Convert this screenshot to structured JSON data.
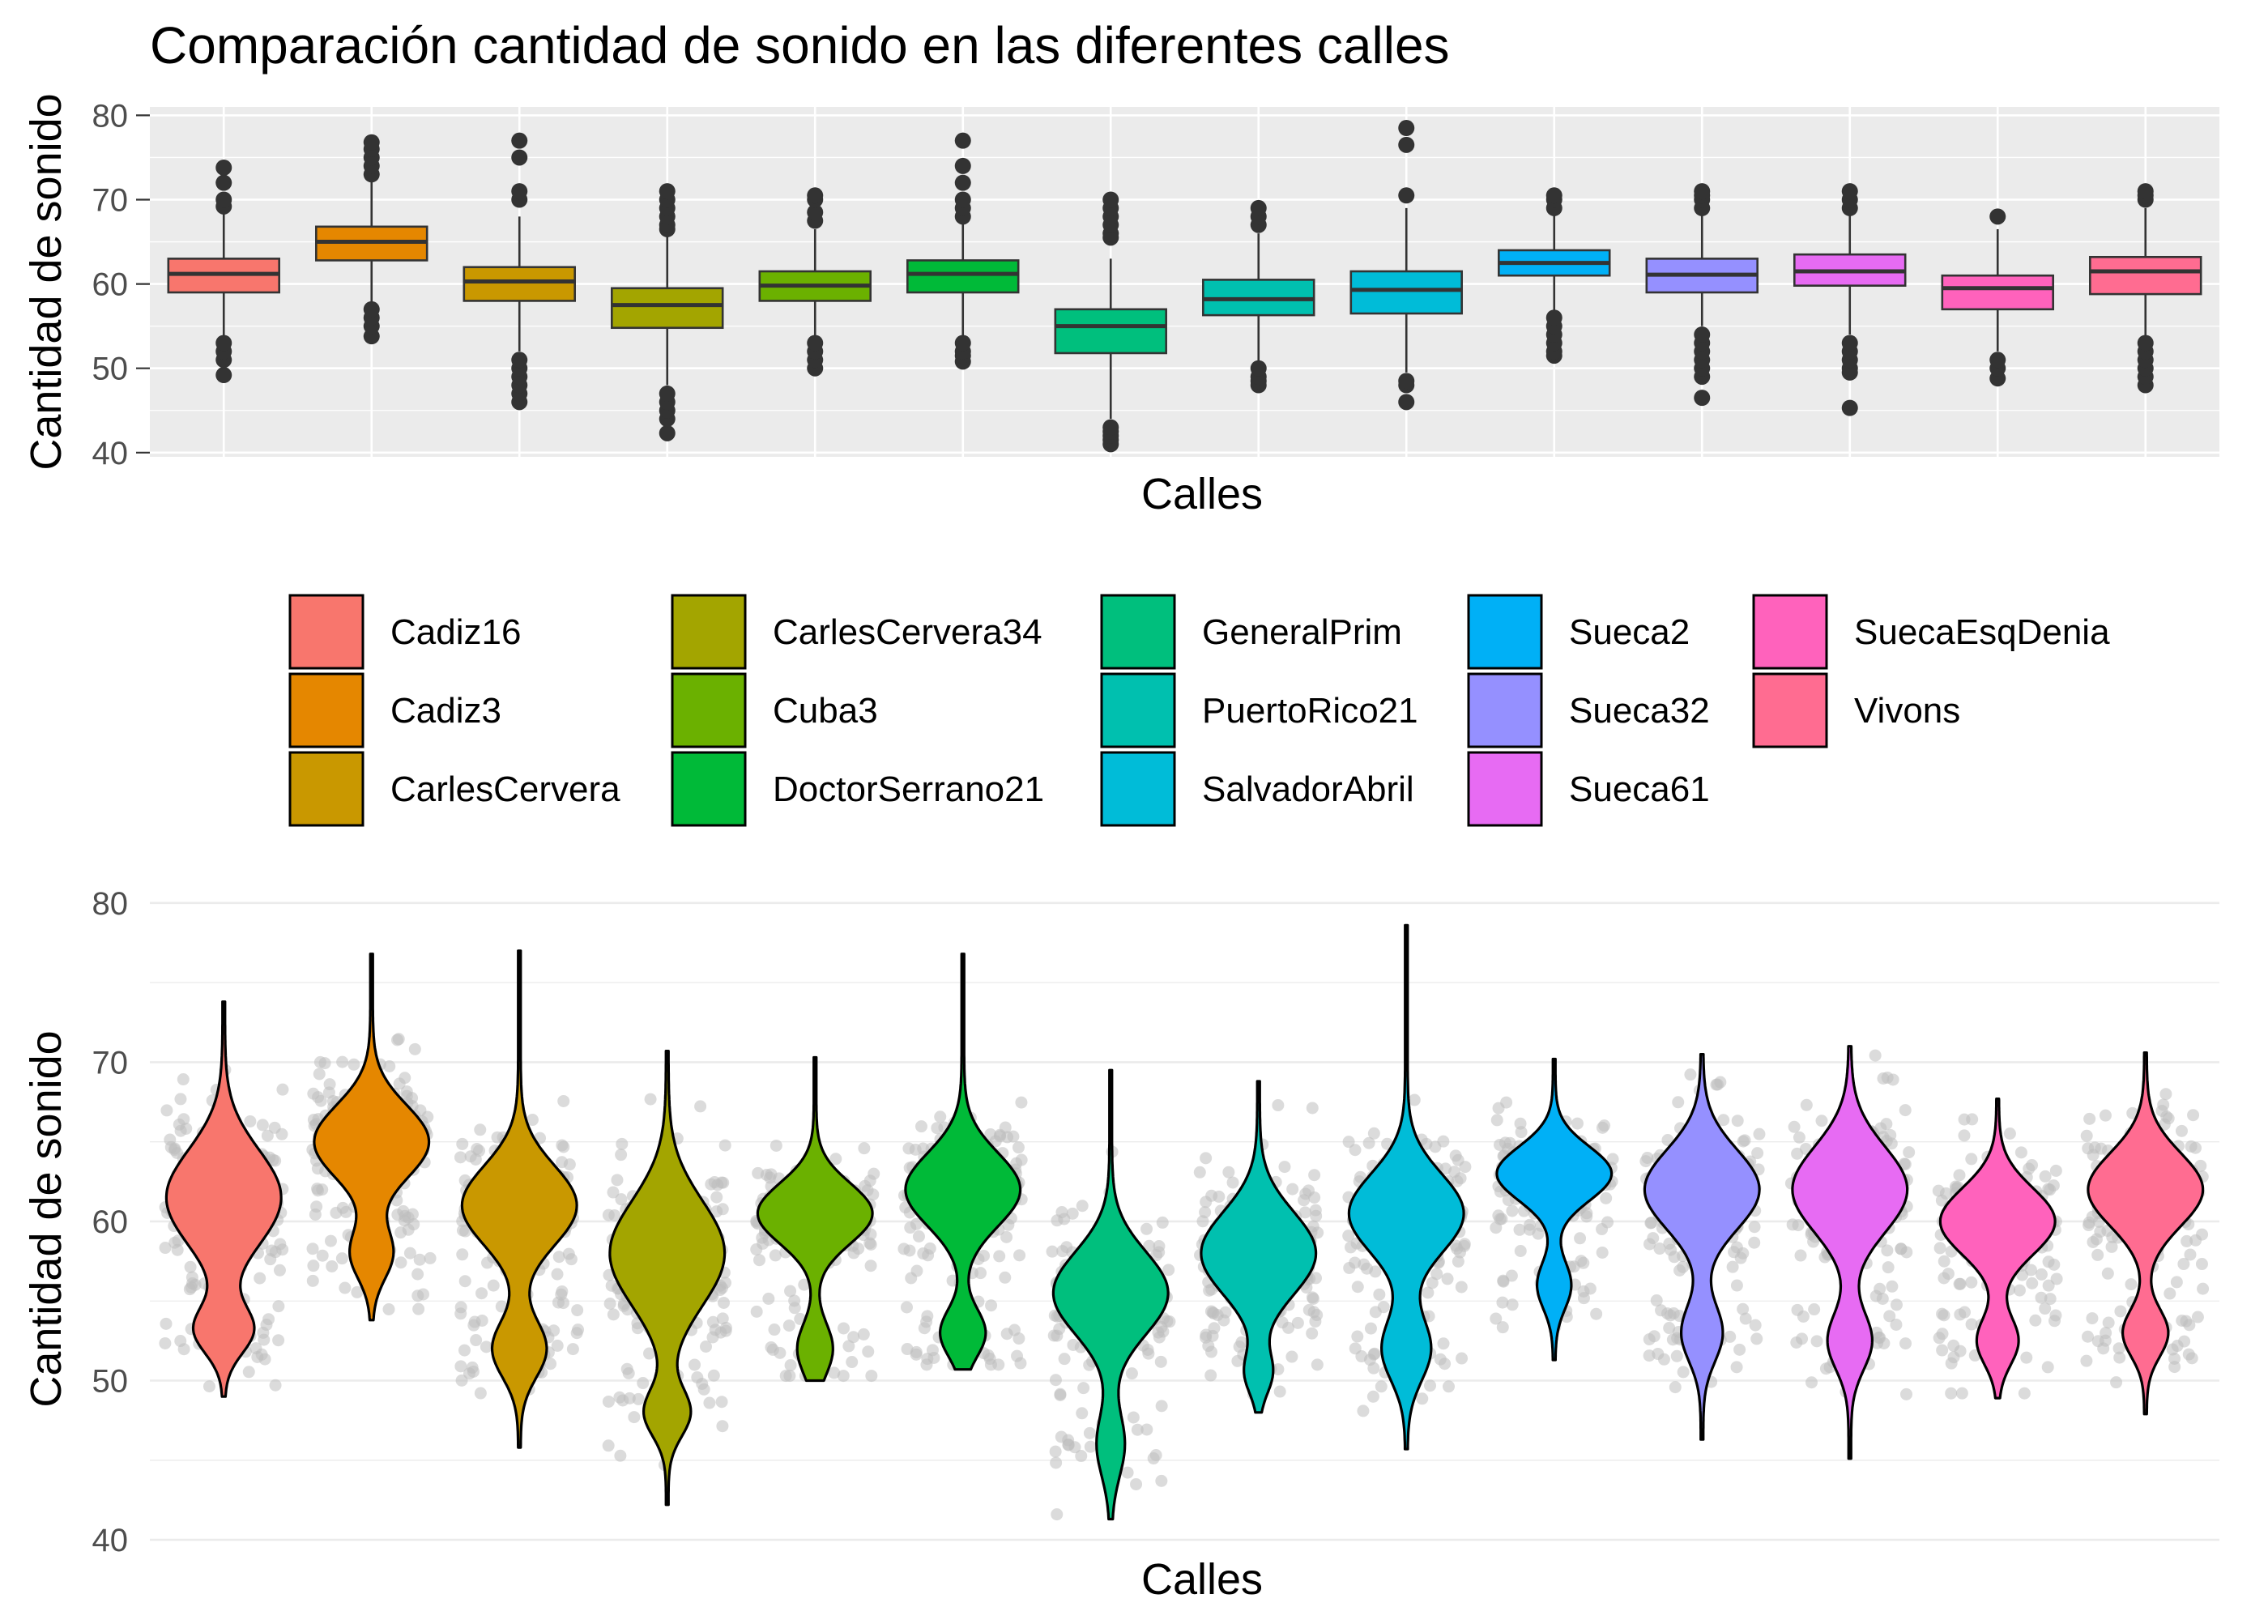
{
  "title": "Comparación cantidad de sonido en las diferentes calles",
  "chart_data": [
    {
      "type": "box",
      "xlabel": "Calles",
      "ylabel": "Cantidad de sonido",
      "ylim": [
        39.5,
        81
      ],
      "yticks": [
        40,
        50,
        60,
        70,
        80
      ],
      "grid": true,
      "categories": [
        "Cadiz16",
        "Cadiz3",
        "CarlesCervera",
        "CarlesCervera34",
        "Cuba3",
        "DoctorSerrano21",
        "GeneralPrim",
        "PuertoRico21",
        "SalvadorAbril",
        "Sueca2",
        "Sueca32",
        "Sueca61",
        "SuecaEsqDenia",
        "Vivons"
      ],
      "boxes": [
        {
          "name": "Cadiz16",
          "color": "#F8766D",
          "q1": 59,
          "median": 61.2,
          "q3": 63,
          "whisker_low": 53,
          "whisker_high": 68.5,
          "outliers": [
            49.2,
            51,
            52,
            53,
            69.2,
            70,
            72,
            73.8
          ]
        },
        {
          "name": "Cadiz3",
          "color": "#E58700",
          "q1": 62.8,
          "median": 65,
          "q3": 66.8,
          "whisker_low": 57,
          "whisker_high": 72.5,
          "outliers": [
            53.8,
            55,
            56,
            57,
            73,
            74,
            75,
            76,
            76.8
          ]
        },
        {
          "name": "CarlesCervera",
          "color": "#C99800",
          "q1": 58,
          "median": 60.3,
          "q3": 62,
          "whisker_low": 52,
          "whisker_high": 68,
          "outliers": [
            46,
            47,
            48,
            49,
            50,
            51,
            70,
            71,
            75,
            77
          ]
        },
        {
          "name": "CarlesCervera34",
          "color": "#A3A500",
          "q1": 54.8,
          "median": 57.5,
          "q3": 59.5,
          "whisker_low": 48,
          "whisker_high": 66,
          "outliers": [
            42.3,
            44,
            45,
            46,
            47,
            66.5,
            67,
            68,
            69,
            70,
            71
          ]
        },
        {
          "name": "Cuba3",
          "color": "#6BB100",
          "q1": 58,
          "median": 59.8,
          "q3": 61.5,
          "whisker_low": 53,
          "whisker_high": 66.5,
          "outliers": [
            50,
            51,
            52,
            53,
            67.5,
            68.5,
            70,
            70.5
          ]
        },
        {
          "name": "DoctorSerrano21",
          "color": "#00BA38",
          "q1": 59,
          "median": 61.2,
          "q3": 62.8,
          "whisker_low": 53,
          "whisker_high": 67.5,
          "outliers": [
            50.8,
            51.5,
            52,
            53,
            68,
            69,
            70,
            72,
            74,
            77
          ]
        },
        {
          "name": "GeneralPrim",
          "color": "#00BF7D",
          "q1": 51.8,
          "median": 55,
          "q3": 57,
          "whisker_low": 44,
          "whisker_high": 63,
          "outliers": [
            41,
            41.5,
            42,
            42.5,
            43,
            65.5,
            66,
            67,
            68,
            69,
            70
          ]
        },
        {
          "name": "PuertoRico21",
          "color": "#00C0AF",
          "q1": 56.3,
          "median": 58.2,
          "q3": 60.5,
          "whisker_low": 50,
          "whisker_high": 66,
          "outliers": [
            48,
            48.5,
            49,
            50,
            67,
            68,
            69
          ]
        },
        {
          "name": "SalvadorAbril",
          "color": "#00BCD8",
          "q1": 56.5,
          "median": 59.3,
          "q3": 61.5,
          "whisker_low": 49.5,
          "whisker_high": 69,
          "outliers": [
            46,
            48,
            48.5,
            70.5,
            76.5,
            78.5
          ]
        },
        {
          "name": "Sueca2",
          "color": "#00B0F6",
          "q1": 61,
          "median": 62.5,
          "q3": 64,
          "whisker_low": 56.5,
          "whisker_high": 68.5,
          "outliers": [
            51.5,
            52,
            53,
            54,
            55,
            56,
            69,
            70,
            70.5
          ]
        },
        {
          "name": "Sueca32",
          "color": "#9590FF",
          "q1": 59,
          "median": 61.1,
          "q3": 63,
          "whisker_low": 55,
          "whisker_high": 68.5,
          "outliers": [
            46.5,
            49,
            50,
            51,
            52,
            53,
            54,
            69,
            70,
            70.5,
            71
          ]
        },
        {
          "name": "Sueca61",
          "color": "#E76BF3",
          "q1": 59.8,
          "median": 61.5,
          "q3": 63.5,
          "whisker_low": 54,
          "whisker_high": 68.5,
          "outliers": [
            45.3,
            49.5,
            50,
            51,
            52,
            53,
            69,
            70,
            71
          ]
        },
        {
          "name": "SuecaEsqDenia",
          "color": "#FF62BC",
          "q1": 57,
          "median": 59.5,
          "q3": 61,
          "whisker_low": 52,
          "whisker_high": 66.5,
          "outliers": [
            48.8,
            50,
            51,
            68
          ]
        },
        {
          "name": "Vivons",
          "color": "#FF6C91",
          "q1": 58.8,
          "median": 61.5,
          "q3": 63.2,
          "whisker_low": 53,
          "whisker_high": 69,
          "outliers": [
            48,
            49,
            50,
            51,
            52,
            53,
            70,
            70.5,
            71
          ]
        }
      ]
    },
    {
      "type": "violin",
      "xlabel": "Calles",
      "ylabel": "Cantidad de sonido",
      "ylim": [
        39.8,
        80.5
      ],
      "yticks": [
        40,
        50,
        60,
        70,
        80
      ],
      "grid": true,
      "jitter_points_color": "#BEBEBE",
      "violins": [
        {
          "name": "Cadiz16",
          "color": "#F8766D",
          "min": 49,
          "max": 73.8,
          "modes": [
            {
              "mu": 61.5,
              "sd": 3,
              "w": 0.8
            },
            {
              "mu": 53.2,
              "sd": 1.5,
              "w": 0.2
            }
          ]
        },
        {
          "name": "Cadiz3",
          "color": "#E58700",
          "min": 53.8,
          "max": 76.8,
          "modes": [
            {
              "mu": 65,
              "sd": 2.3,
              "w": 0.8
            },
            {
              "mu": 58,
              "sd": 1.6,
              "w": 0.2
            }
          ]
        },
        {
          "name": "CarlesCervera",
          "color": "#C99800",
          "min": 45.8,
          "max": 77,
          "modes": [
            {
              "mu": 61,
              "sd": 2.5,
              "w": 0.75
            },
            {
              "mu": 52,
              "sd": 1.8,
              "w": 0.25
            }
          ]
        },
        {
          "name": "CarlesCervera34",
          "color": "#A3A500",
          "min": 42.2,
          "max": 70.7,
          "modes": [
            {
              "mu": 58,
              "sd": 3.3,
              "w": 0.85
            },
            {
              "mu": 48,
              "sd": 1.5,
              "w": 0.15
            }
          ]
        },
        {
          "name": "Cuba3",
          "color": "#6BB100",
          "min": 50,
          "max": 70.3,
          "modes": [
            {
              "mu": 60.5,
              "sd": 1.9,
              "w": 0.8
            },
            {
              "mu": 52,
              "sd": 1.6,
              "w": 0.2
            }
          ]
        },
        {
          "name": "DoctorSerrano21",
          "color": "#00BA38",
          "min": 50.7,
          "max": 76.8,
          "modes": [
            {
              "mu": 62,
              "sd": 2.3,
              "w": 0.8
            },
            {
              "mu": 53,
              "sd": 1.5,
              "w": 0.2
            }
          ]
        },
        {
          "name": "GeneralPrim",
          "color": "#00BF7D",
          "min": 41.3,
          "max": 69.5,
          "modes": [
            {
              "mu": 55.5,
              "sd": 2.6,
              "w": 0.85
            },
            {
              "mu": 46,
              "sd": 2,
              "w": 0.15
            }
          ]
        },
        {
          "name": "PuertoRico21",
          "color": "#00C0AF",
          "min": 48,
          "max": 68.8,
          "modes": [
            {
              "mu": 58,
              "sd": 2.6,
              "w": 0.9
            },
            {
              "mu": 50.5,
              "sd": 1.3,
              "w": 0.1
            }
          ]
        },
        {
          "name": "SalvadorAbril",
          "color": "#00BCD8",
          "min": 45.7,
          "max": 78.6,
          "modes": [
            {
              "mu": 60.5,
              "sd": 2.5,
              "w": 0.75
            },
            {
              "mu": 52,
              "sd": 2,
              "w": 0.25
            }
          ]
        },
        {
          "name": "Sueca2",
          "color": "#00B0F6",
          "min": 51.3,
          "max": 70.2,
          "modes": [
            {
              "mu": 63,
              "sd": 1.7,
              "w": 0.8
            },
            {
              "mu": 56,
              "sd": 1.5,
              "w": 0.2
            }
          ]
        },
        {
          "name": "Sueca32",
          "color": "#9590FF",
          "min": 46.3,
          "max": 70.5,
          "modes": [
            {
              "mu": 62,
              "sd": 2.5,
              "w": 0.8
            },
            {
              "mu": 53,
              "sd": 1.8,
              "w": 0.2
            }
          ]
        },
        {
          "name": "Sueca61",
          "color": "#E76BF3",
          "min": 45.1,
          "max": 71,
          "modes": [
            {
              "mu": 62,
              "sd": 2.7,
              "w": 0.8
            },
            {
              "mu": 52.5,
              "sd": 1.8,
              "w": 0.2
            }
          ]
        },
        {
          "name": "SuecaEsqDenia",
          "color": "#FF62BC",
          "min": 48.9,
          "max": 67.7,
          "modes": [
            {
              "mu": 60,
              "sd": 2.1,
              "w": 0.8
            },
            {
              "mu": 52.5,
              "sd": 1.5,
              "w": 0.2
            }
          ]
        },
        {
          "name": "Vivons",
          "color": "#FF6C91",
          "min": 47.9,
          "max": 70.6,
          "modes": [
            {
              "mu": 62,
              "sd": 2.3,
              "w": 0.8
            },
            {
              "mu": 53,
              "sd": 1.5,
              "w": 0.2
            }
          ]
        }
      ]
    }
  ],
  "legend": {
    "columns": 5,
    "entries": [
      {
        "label": "Cadiz16",
        "color": "#F8766D"
      },
      {
        "label": "Cadiz3",
        "color": "#E58700"
      },
      {
        "label": "CarlesCervera",
        "color": "#C99800"
      },
      {
        "label": "CarlesCervera34",
        "color": "#A3A500"
      },
      {
        "label": "Cuba3",
        "color": "#6BB100"
      },
      {
        "label": "DoctorSerrano21",
        "color": "#00BA38"
      },
      {
        "label": "GeneralPrim",
        "color": "#00BF7D"
      },
      {
        "label": "PuertoRico21",
        "color": "#00C0AF"
      },
      {
        "label": "SalvadorAbril",
        "color": "#00BCD8"
      },
      {
        "label": "Sueca2",
        "color": "#00B0F6"
      },
      {
        "label": "Sueca32",
        "color": "#9590FF"
      },
      {
        "label": "Sueca61",
        "color": "#E76BF3"
      },
      {
        "label": "SuecaEsqDenia",
        "color": "#FF62BC"
      },
      {
        "label": "Vivons",
        "color": "#FF6C91"
      }
    ]
  }
}
